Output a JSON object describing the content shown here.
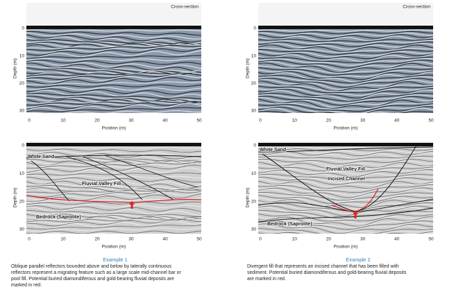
{
  "axes": {
    "x_label": "Position (m)",
    "y_label": "Depth (m)",
    "xticks": [
      "0",
      "10",
      "20",
      "30",
      "40",
      "50"
    ],
    "yticks": [
      "0",
      "10",
      "20",
      "30"
    ]
  },
  "panels": [
    {
      "header": "Cross-section"
    },
    {
      "header": "Cross-section"
    },
    {
      "annotations": [
        "White Sand",
        "Fluvial Valley Fill",
        "Bedrock (Saprolite)"
      ]
    },
    {
      "annotations": [
        "White Sand",
        "Fluvial Valley Fill",
        "Incised Channel",
        "Bedrock (Saprolite)"
      ]
    }
  ],
  "examples": [
    {
      "title": "Example 1",
      "caption": [
        "Oblique parallel reflectors bounded above and below by laterally continuous",
        "reflectors represent a migrating feature such as a large scale mid-channel bar or",
        "pool fill. Potential buried diamondiferous and gold-bearing fluvial deposits are",
        "marked in red."
      ]
    },
    {
      "title": "Example 2",
      "caption": [
        "Divergent fill that represents an incised channel that has been filled with",
        "sediment. Potential buried diamondiferous and gold-bearing fluvial deposits",
        "are marked in red."
      ]
    }
  ]
}
